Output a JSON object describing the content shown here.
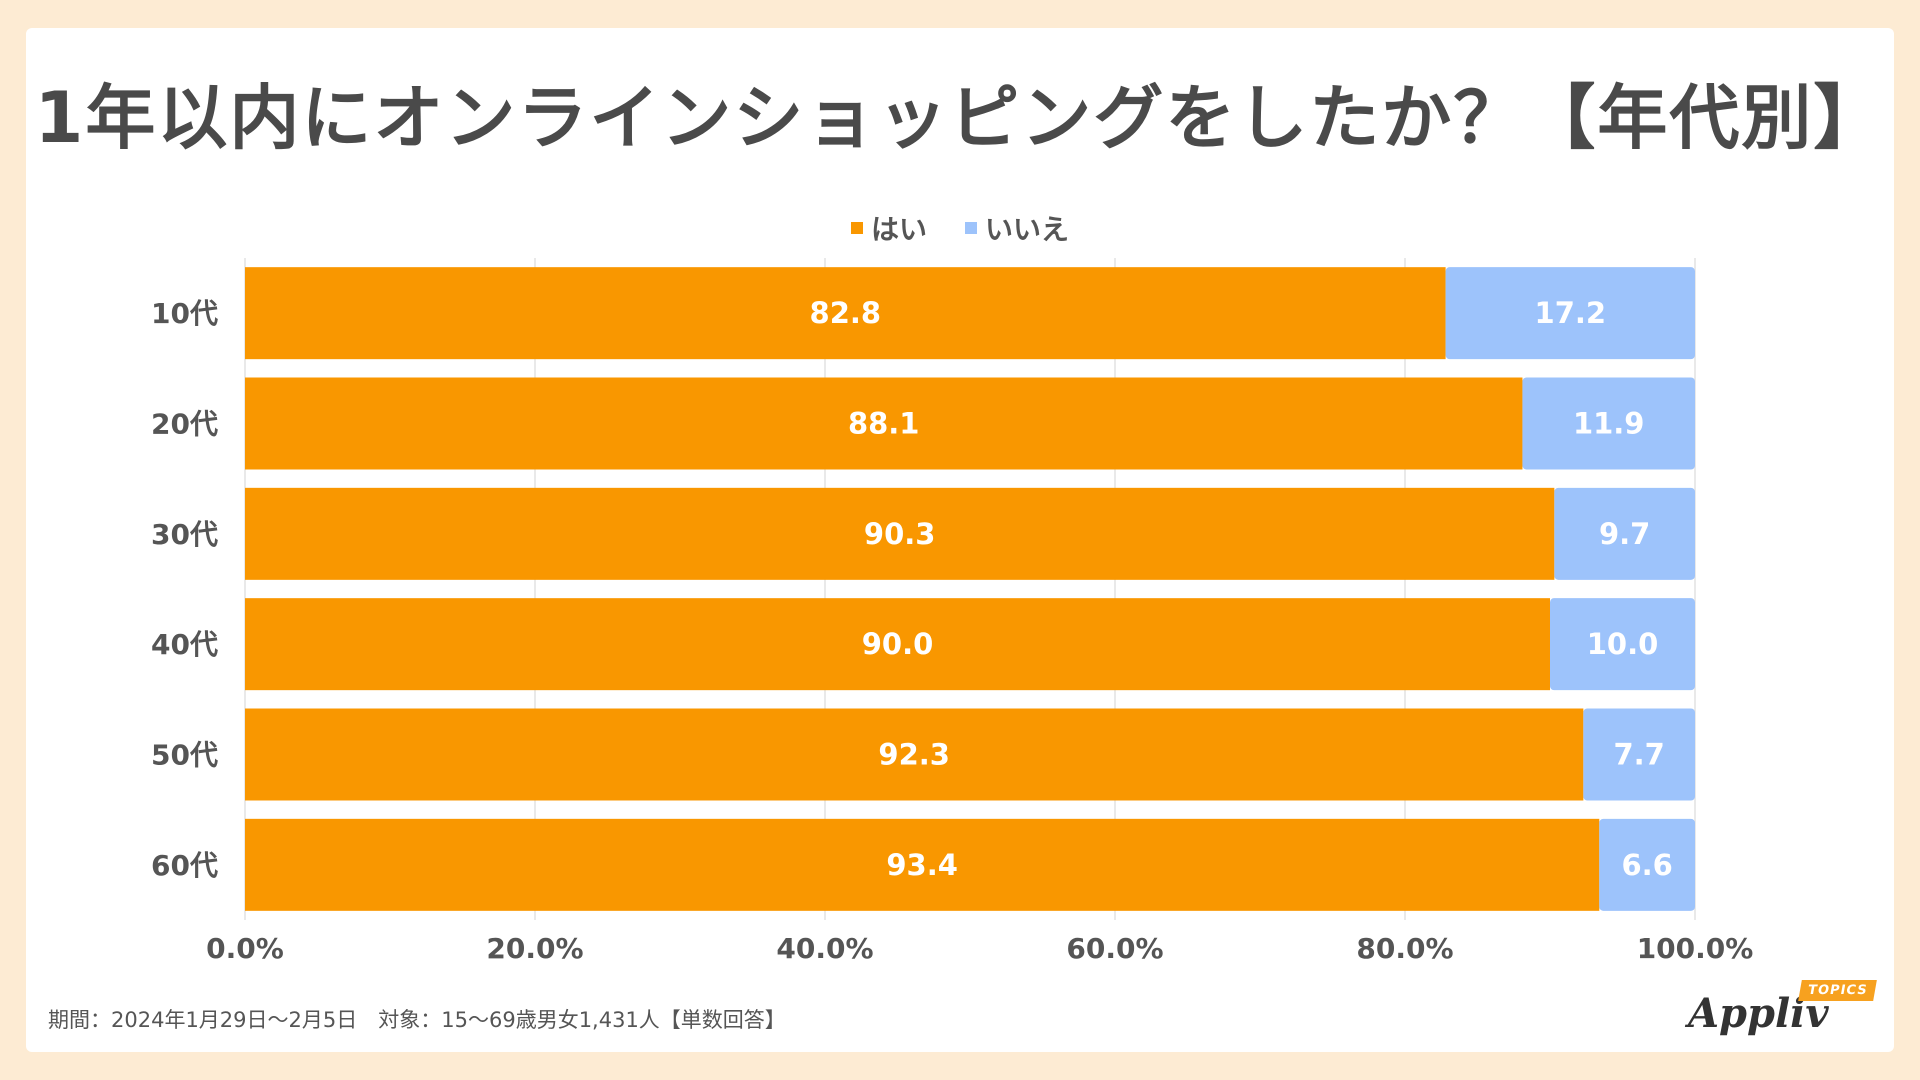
{
  "title": "1年以内にオンラインショッピングをしたか？【年代別】",
  "legend": {
    "yes_label": "はい",
    "no_label": "いいえ"
  },
  "colors": {
    "yes": "#f99700",
    "no": "#9dc3fb",
    "axis_text": "#555555",
    "grid": "#e2e2e2"
  },
  "footnote": "期間：2024年1月29日～2月5日　対象：15～69歳男女1,431人【単数回答】",
  "logo": {
    "text": "Appliv",
    "badge": "TOPICS"
  },
  "chart_data": {
    "type": "bar",
    "orientation": "horizontal",
    "stacked": true,
    "title": "1年以内にオンラインショッピングをしたか？【年代別】",
    "categories": [
      "10代",
      "20代",
      "30代",
      "40代",
      "50代",
      "60代"
    ],
    "series": [
      {
        "name": "はい",
        "values": [
          82.8,
          88.1,
          90.3,
          90.0,
          92.3,
          93.4
        ]
      },
      {
        "name": "いいえ",
        "values": [
          17.2,
          11.9,
          9.7,
          10.0,
          7.7,
          6.6
        ]
      }
    ],
    "value_labels": [
      [
        "82.8",
        "88.1",
        "90.3",
        "90.0",
        "92.3",
        "93.4"
      ],
      [
        "17.2",
        "11.9",
        "9.7",
        "10.0",
        "7.7",
        "6.6"
      ]
    ],
    "xlim": [
      0,
      100
    ],
    "xticks": [
      "0.0%",
      "20.0%",
      "40.0%",
      "60.0%",
      "80.0%",
      "100.0%"
    ],
    "xlabel": "",
    "ylabel": "",
    "grid": true,
    "legend_position": "top-center"
  }
}
